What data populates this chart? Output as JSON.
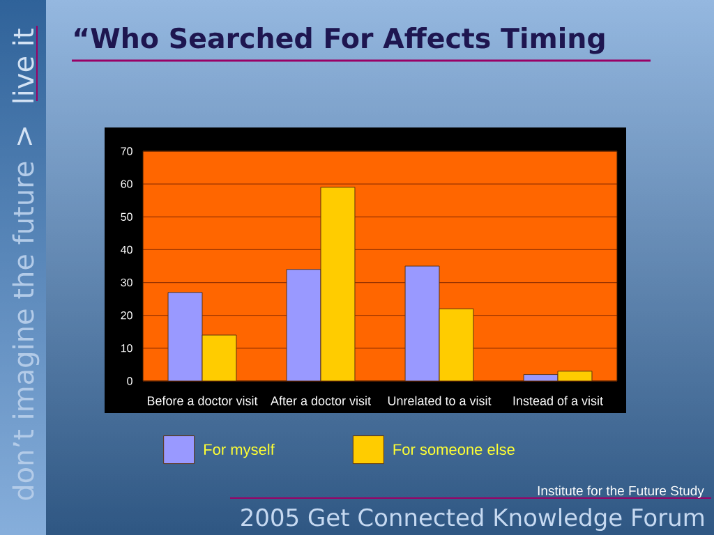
{
  "chart_data": {
    "type": "bar",
    "title": "“Who Searched For Affects Timing",
    "categories": [
      "Before a doctor visit",
      "After a doctor visit",
      "Unrelated to a visit",
      "Instead of a visit"
    ],
    "series": [
      {
        "name": "For myself",
        "color": "#9999ff",
        "values": [
          27,
          34,
          35,
          2
        ]
      },
      {
        "name": "For someone else",
        "color": "#ffcc00",
        "values": [
          14,
          59,
          22,
          3
        ]
      }
    ],
    "ylim": [
      0,
      70
    ],
    "yticks": [
      0,
      10,
      20,
      30,
      40,
      50,
      60,
      70
    ],
    "grid": "y",
    "legend": "bottom",
    "annotations": [
      "don’t imagine the future",
      ">",
      "live it",
      "Institute for the Future Study",
      "2005 Get Connected Knowledge Forum"
    ]
  }
}
